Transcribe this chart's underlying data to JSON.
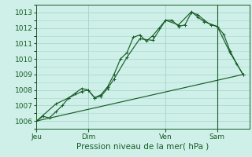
{
  "title": "Pression niveau de la mer( hPa )",
  "bg_color": "#cef0e8",
  "grid_color": "#a8d8cc",
  "line_color": "#1a5c28",
  "ylim": [
    1005.5,
    1013.5
  ],
  "yticks": [
    1006,
    1007,
    1008,
    1009,
    1010,
    1011,
    1012,
    1013
  ],
  "day_labels": [
    "Jeu",
    "Dim",
    "Ven",
    "Sam"
  ],
  "day_positions": [
    0,
    8,
    20,
    28
  ],
  "xlim": [
    0,
    33
  ],
  "line1_x": [
    0,
    1,
    2,
    3,
    4,
    5,
    6,
    7,
    8,
    9,
    10,
    11,
    12,
    13,
    14,
    15,
    16,
    17,
    18,
    19,
    20,
    21,
    22,
    23,
    24,
    25,
    26,
    27,
    28,
    29,
    30,
    31,
    32
  ],
  "line1_y": [
    1006.0,
    1006.3,
    1006.2,
    1006.6,
    1007.0,
    1007.5,
    1007.8,
    1008.1,
    1008.0,
    1007.5,
    1007.7,
    1008.2,
    1009.0,
    1010.0,
    1010.4,
    1011.4,
    1011.55,
    1011.15,
    1011.5,
    1012.0,
    1012.5,
    1012.5,
    1012.1,
    1012.2,
    1013.0,
    1012.85,
    1012.5,
    1012.2,
    1012.1,
    1011.6,
    1010.5,
    1009.7,
    1009.0
  ],
  "line2_x": [
    0,
    3,
    5,
    7,
    8,
    9,
    10,
    11,
    12,
    14,
    16,
    18,
    20,
    22,
    24,
    25,
    26,
    28,
    30,
    32
  ],
  "line2_y": [
    1006.0,
    1007.1,
    1007.5,
    1007.9,
    1008.0,
    1007.5,
    1007.6,
    1008.1,
    1008.7,
    1010.1,
    1011.3,
    1011.2,
    1012.5,
    1012.2,
    1013.05,
    1012.7,
    1012.4,
    1012.1,
    1010.4,
    1009.0
  ],
  "line3_x": [
    0,
    32
  ],
  "line3_y": [
    1006.0,
    1009.0
  ],
  "vline_x": 28,
  "xlabel_fontsize": 7.5,
  "ytick_fontsize": 6.5,
  "xtick_fontsize": 6.5
}
